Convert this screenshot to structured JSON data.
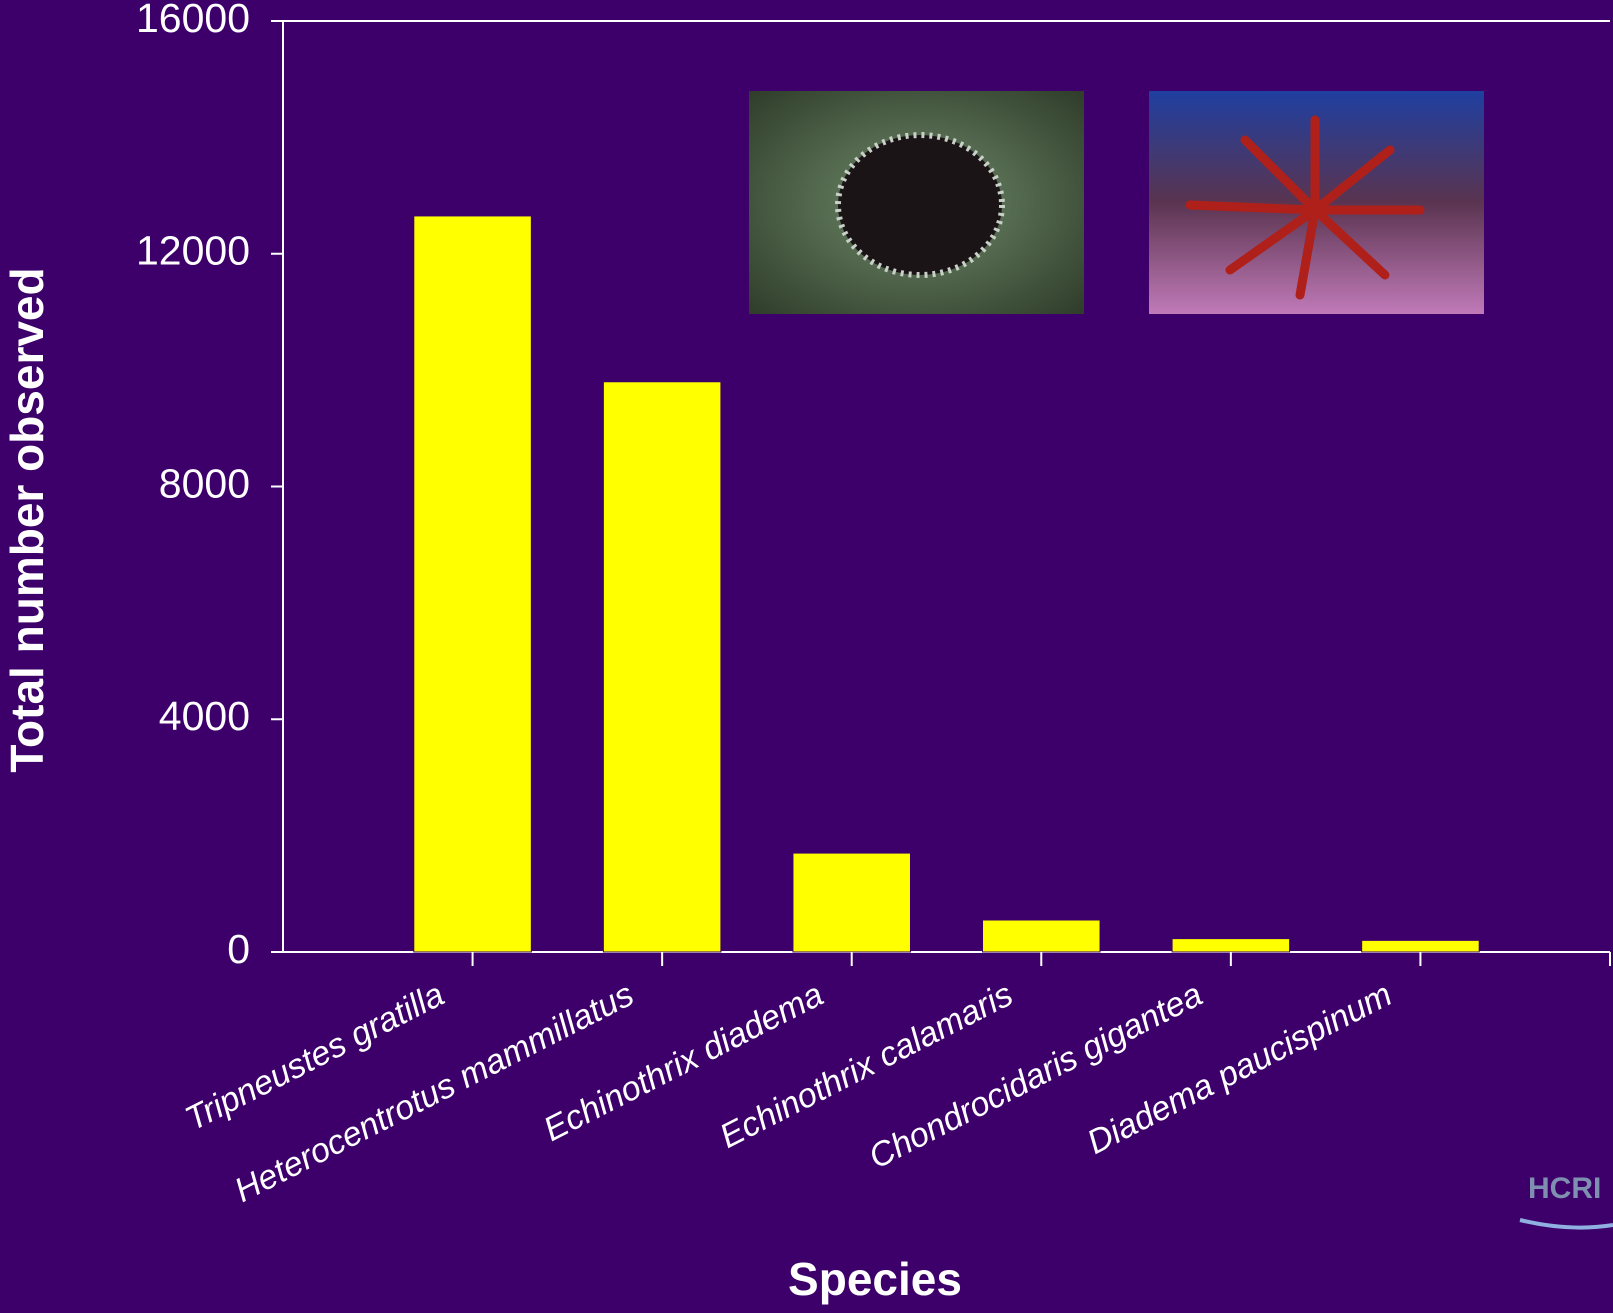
{
  "chart_data": {
    "type": "bar",
    "y_label": "Total number observed",
    "x_label": "Species",
    "categories": [
      "Tripneustes gratilla",
      "Heterocentrotus mammillatus",
      "Echinothrix diadema",
      "Echinothrix calamaris",
      "Chondrocidaris gigantea",
      "Diadema paucispinum"
    ],
    "values": [
      12650,
      9800,
      1700,
      550,
      230,
      200
    ],
    "color": "#ffff00",
    "ylim": [
      0,
      16000
    ],
    "yticks": [
      0,
      4000,
      8000,
      12000,
      16000
    ],
    "grid": false
  }
}
